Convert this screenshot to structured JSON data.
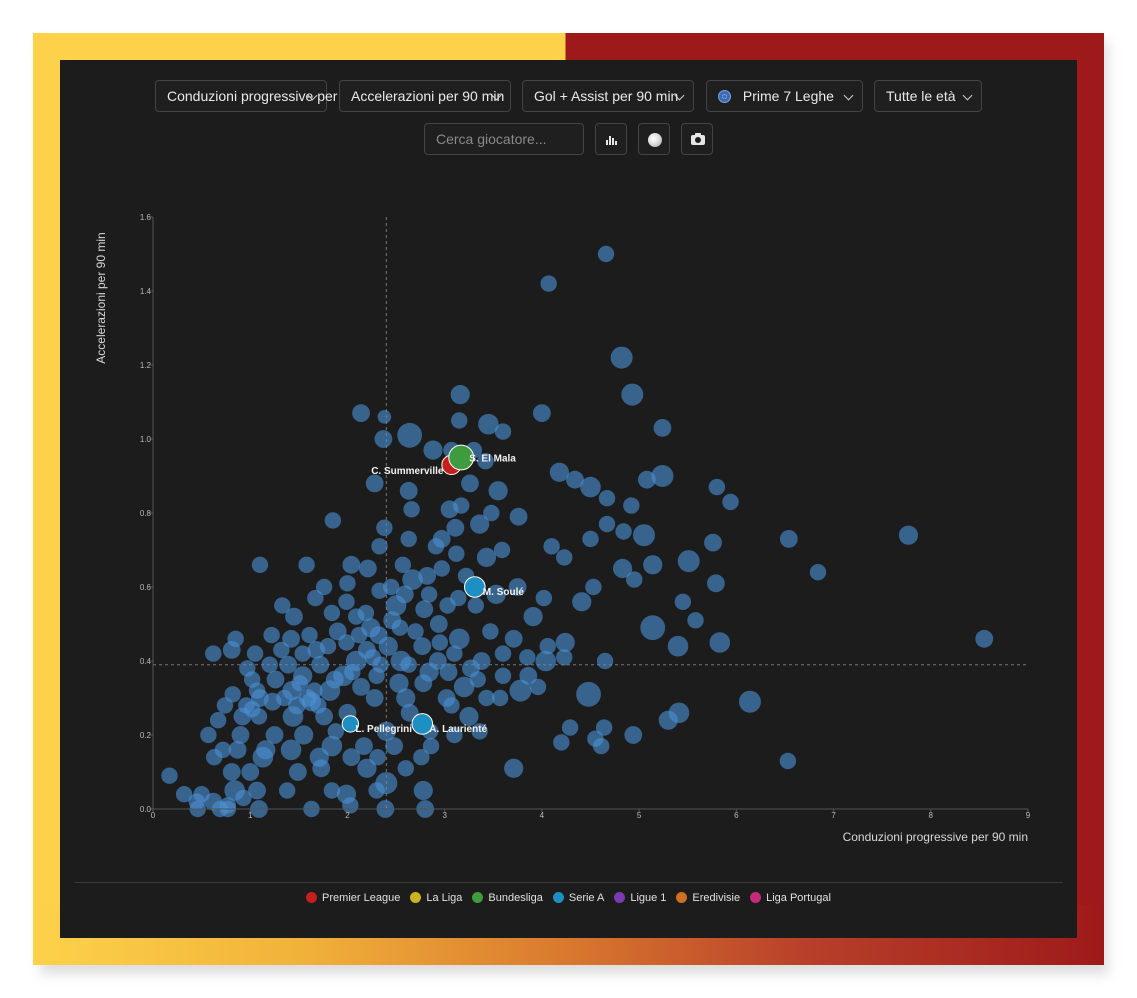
{
  "controls": {
    "x_metric": "Conduzioni progressive per 90 min",
    "y_metric": "Accelerazioni per 90 min",
    "size_metric": "Gol + Assist per 90 min",
    "league_filter": "Prime 7 Leghe",
    "age_filter": "Tutte le età",
    "search_placeholder": "Cerca giocatore..."
  },
  "icons": {
    "bar_chart": "bar-chart-icon",
    "circle": "bubble-toggle-icon",
    "camera": "camera-icon",
    "globe": "globe-icon",
    "chevron": "chevron-down-icon"
  },
  "colors": {
    "frame_left": "#fdd24a",
    "frame_right": "#9e1a1a",
    "background": "#1c1c1c",
    "bubble": "#4a8fd4"
  },
  "legend": [
    {
      "label": "Premier League",
      "color": "#c41e1e"
    },
    {
      "label": "La Liga",
      "color": "#c9b31e"
    },
    {
      "label": "Bundesliga",
      "color": "#3e9b3e"
    },
    {
      "label": "Serie A",
      "color": "#1d8fc2"
    },
    {
      "label": "Ligue 1",
      "color": "#7b3bb0"
    },
    {
      "label": "Eredivisie",
      "color": "#d0701e"
    },
    {
      "label": "Liga Portugal",
      "color": "#c62a7a"
    }
  ],
  "chart_data": {
    "type": "scatter",
    "xlabel": "Conduzioni progressive per 90 min",
    "ylabel": "Accelerazioni per 90 min",
    "xlim": [
      0,
      9
    ],
    "ylim": [
      0,
      1.6
    ],
    "xticks": [
      "0",
      "1",
      "2",
      "3",
      "4",
      "5",
      "6",
      "7",
      "8",
      "9"
    ],
    "yticks": [
      "0.0",
      "0.2",
      "0.4",
      "0.6",
      "0.8",
      "1.0",
      "1.2",
      "1.4",
      "1.6"
    ],
    "reference_lines": {
      "x": 2.4,
      "y": 0.39
    },
    "highlighted": [
      {
        "name": "C. Summerville",
        "x": 3.07,
        "y": 0.93,
        "size": 0.4,
        "league": "Premier League"
      },
      {
        "name": "S. El Mala",
        "x": 3.17,
        "y": 0.95,
        "size": 0.6,
        "league": "Bundesliga"
      },
      {
        "name": "M. Soulé",
        "x": 3.31,
        "y": 0.6,
        "size": 0.45,
        "league": "Serie A"
      },
      {
        "name": "L. Pellegrini",
        "x": 2.03,
        "y": 0.23,
        "size": 0.3,
        "league": "Serie A"
      },
      {
        "name": "A. Laurienté",
        "x": 2.77,
        "y": 0.23,
        "size": 0.45,
        "league": "Serie A"
      }
    ],
    "points": [
      [
        4.66,
        1.5,
        0.3
      ],
      [
        4.07,
        1.42,
        0.3
      ],
      [
        4.82,
        1.22,
        0.5
      ],
      [
        4.93,
        1.12,
        0.5
      ],
      [
        3.16,
        1.12,
        0.4
      ],
      [
        2.14,
        1.07,
        0.35
      ],
      [
        2.38,
        1.06,
        0.2
      ],
      [
        4.0,
        1.07,
        0.35
      ],
      [
        3.15,
        1.05,
        0.3
      ],
      [
        3.45,
        1.04,
        0.45
      ],
      [
        3.6,
        1.02,
        0.3
      ],
      [
        5.24,
        1.03,
        0.35
      ],
      [
        2.64,
        1.01,
        0.6
      ],
      [
        2.37,
        1.0,
        0.35
      ],
      [
        2.88,
        0.97,
        0.4
      ],
      [
        3.3,
        0.97,
        0.3
      ],
      [
        3.07,
        0.97,
        0.3
      ],
      [
        3.42,
        0.94,
        0.3
      ],
      [
        4.18,
        0.91,
        0.4
      ],
      [
        5.08,
        0.89,
        0.35
      ],
      [
        5.24,
        0.9,
        0.5
      ],
      [
        4.34,
        0.89,
        0.35
      ],
      [
        4.5,
        0.87,
        0.45
      ],
      [
        5.8,
        0.87,
        0.3
      ],
      [
        3.26,
        0.88,
        0.35
      ],
      [
        2.28,
        0.88,
        0.35
      ],
      [
        2.63,
        0.86,
        0.35
      ],
      [
        3.55,
        0.86,
        0.4
      ],
      [
        4.67,
        0.84,
        0.3
      ],
      [
        5.94,
        0.83,
        0.3
      ],
      [
        4.92,
        0.82,
        0.3
      ],
      [
        2.66,
        0.81,
        0.3
      ],
      [
        3.05,
        0.81,
        0.35
      ],
      [
        3.17,
        0.82,
        0.3
      ],
      [
        3.48,
        0.8,
        0.3
      ],
      [
        1.85,
        0.78,
        0.3
      ],
      [
        3.76,
        0.79,
        0.35
      ],
      [
        3.36,
        0.77,
        0.4
      ],
      [
        4.67,
        0.77,
        0.3
      ],
      [
        2.38,
        0.76,
        0.3
      ],
      [
        3.11,
        0.76,
        0.35
      ],
      [
        5.05,
        0.74,
        0.5
      ],
      [
        6.54,
        0.73,
        0.35
      ],
      [
        7.77,
        0.74,
        0.4
      ],
      [
        4.84,
        0.75,
        0.3
      ],
      [
        4.5,
        0.73,
        0.3
      ],
      [
        2.63,
        0.73,
        0.3
      ],
      [
        2.97,
        0.73,
        0.35
      ],
      [
        5.76,
        0.72,
        0.35
      ],
      [
        4.1,
        0.71,
        0.3
      ],
      [
        2.91,
        0.71,
        0.3
      ],
      [
        2.33,
        0.71,
        0.3
      ],
      [
        3.59,
        0.7,
        0.3
      ],
      [
        5.14,
        0.66,
        0.4
      ],
      [
        5.51,
        0.67,
        0.5
      ],
      [
        4.83,
        0.65,
        0.4
      ],
      [
        3.43,
        0.68,
        0.4
      ],
      [
        3.12,
        0.69,
        0.3
      ],
      [
        4.23,
        0.68,
        0.3
      ],
      [
        2.04,
        0.66,
        0.35
      ],
      [
        1.1,
        0.66,
        0.3
      ],
      [
        1.58,
        0.66,
        0.3
      ],
      [
        2.21,
        0.65,
        0.35
      ],
      [
        2.57,
        0.66,
        0.3
      ],
      [
        2.97,
        0.65,
        0.3
      ],
      [
        6.84,
        0.64,
        0.3
      ],
      [
        4.95,
        0.62,
        0.3
      ],
      [
        5.79,
        0.61,
        0.35
      ],
      [
        2.67,
        0.62,
        0.45
      ],
      [
        3.75,
        0.6,
        0.35
      ],
      [
        4.53,
        0.6,
        0.3
      ],
      [
        3.53,
        0.58,
        0.4
      ],
      [
        4.02,
        0.57,
        0.3
      ],
      [
        4.41,
        0.56,
        0.4
      ],
      [
        5.45,
        0.56,
        0.3
      ],
      [
        2.5,
        0.55,
        0.45
      ],
      [
        2.79,
        0.54,
        0.35
      ],
      [
        3.03,
        0.55,
        0.3
      ],
      [
        3.32,
        0.55,
        0.3
      ],
      [
        1.67,
        0.57,
        0.3
      ],
      [
        1.33,
        0.55,
        0.3
      ],
      [
        1.84,
        0.53,
        0.3
      ],
      [
        2.09,
        0.52,
        0.3
      ],
      [
        3.91,
        0.52,
        0.4
      ],
      [
        5.58,
        0.51,
        0.3
      ],
      [
        2.94,
        0.5,
        0.35
      ],
      [
        5.14,
        0.49,
        0.6
      ],
      [
        2.54,
        0.49,
        0.3
      ],
      [
        2.24,
        0.49,
        0.4
      ],
      [
        1.9,
        0.48,
        0.35
      ],
      [
        1.61,
        0.47,
        0.3
      ],
      [
        3.47,
        0.48,
        0.3
      ],
      [
        3.71,
        0.46,
        0.35
      ],
      [
        3.15,
        0.46,
        0.45
      ],
      [
        4.24,
        0.45,
        0.4
      ],
      [
        5.83,
        0.45,
        0.45
      ],
      [
        8.55,
        0.46,
        0.35
      ],
      [
        5.4,
        0.44,
        0.45
      ],
      [
        4.06,
        0.44,
        0.3
      ],
      [
        2.77,
        0.44,
        0.35
      ],
      [
        2.42,
        0.44,
        0.4
      ],
      [
        2.2,
        0.43,
        0.35
      ],
      [
        1.8,
        0.44,
        0.3
      ],
      [
        0.81,
        0.43,
        0.35
      ],
      [
        0.62,
        0.42,
        0.3
      ],
      [
        0.85,
        0.46,
        0.3
      ],
      [
        3.6,
        0.42,
        0.3
      ],
      [
        3.85,
        0.41,
        0.3
      ],
      [
        4.04,
        0.4,
        0.45
      ],
      [
        4.23,
        0.41,
        0.3
      ],
      [
        4.65,
        0.4,
        0.3
      ],
      [
        2.55,
        0.4,
        0.45
      ],
      [
        2.09,
        0.4,
        0.45
      ],
      [
        1.72,
        0.39,
        0.35
      ],
      [
        1.39,
        0.39,
        0.35
      ],
      [
        1.2,
        0.39,
        0.3
      ],
      [
        3.27,
        0.38,
        0.35
      ],
      [
        3.04,
        0.37,
        0.35
      ],
      [
        2.84,
        0.37,
        0.4
      ],
      [
        2.3,
        0.36,
        0.3
      ],
      [
        1.96,
        0.36,
        0.45
      ],
      [
        1.54,
        0.36,
        0.4
      ],
      [
        1.26,
        0.35,
        0.35
      ],
      [
        1.02,
        0.35,
        0.3
      ],
      [
        3.34,
        0.35,
        0.3
      ],
      [
        2.53,
        0.34,
        0.4
      ],
      [
        2.78,
        0.34,
        0.35
      ],
      [
        3.2,
        0.33,
        0.45
      ],
      [
        3.78,
        0.32,
        0.5
      ],
      [
        3.96,
        0.33,
        0.3
      ],
      [
        2.14,
        0.33,
        0.35
      ],
      [
        1.82,
        0.32,
        0.45
      ],
      [
        1.43,
        0.32,
        0.4
      ],
      [
        1.07,
        0.32,
        0.3
      ],
      [
        0.82,
        0.31,
        0.3
      ],
      [
        4.48,
        0.31,
        0.6
      ],
      [
        3.57,
        0.3,
        0.3
      ],
      [
        3.02,
        0.3,
        0.35
      ],
      [
        2.6,
        0.3,
        0.4
      ],
      [
        2.28,
        0.3,
        0.35
      ],
      [
        1.63,
        0.29,
        0.4
      ],
      [
        1.23,
        0.29,
        0.35
      ],
      [
        0.96,
        0.28,
        0.3
      ],
      [
        0.74,
        0.28,
        0.3
      ],
      [
        6.14,
        0.29,
        0.5
      ],
      [
        3.43,
        0.3,
        0.3
      ],
      [
        3.07,
        0.28,
        0.3
      ],
      [
        5.41,
        0.26,
        0.45
      ],
      [
        5.3,
        0.24,
        0.4
      ],
      [
        3.25,
        0.25,
        0.4
      ],
      [
        2.64,
        0.26,
        0.35
      ],
      [
        2.0,
        0.26,
        0.35
      ],
      [
        1.76,
        0.25,
        0.35
      ],
      [
        1.44,
        0.25,
        0.45
      ],
      [
        1.09,
        0.25,
        0.3
      ],
      [
        0.92,
        0.25,
        0.35
      ],
      [
        0.67,
        0.24,
        0.3
      ],
      [
        4.29,
        0.22,
        0.3
      ],
      [
        4.64,
        0.22,
        0.3
      ],
      [
        4.94,
        0.2,
        0.35
      ],
      [
        3.36,
        0.21,
        0.3
      ],
      [
        3.1,
        0.2,
        0.3
      ],
      [
        2.85,
        0.21,
        0.3
      ],
      [
        2.4,
        0.21,
        0.4
      ],
      [
        1.88,
        0.21,
        0.3
      ],
      [
        1.55,
        0.2,
        0.4
      ],
      [
        1.25,
        0.2,
        0.35
      ],
      [
        0.9,
        0.2,
        0.35
      ],
      [
        0.57,
        0.2,
        0.3
      ],
      [
        4.55,
        0.19,
        0.3
      ],
      [
        4.61,
        0.17,
        0.3
      ],
      [
        4.2,
        0.18,
        0.3
      ],
      [
        2.86,
        0.17,
        0.3
      ],
      [
        2.48,
        0.17,
        0.35
      ],
      [
        2.17,
        0.17,
        0.35
      ],
      [
        1.84,
        0.17,
        0.45
      ],
      [
        1.42,
        0.16,
        0.45
      ],
      [
        1.16,
        0.16,
        0.4
      ],
      [
        0.87,
        0.16,
        0.35
      ],
      [
        0.72,
        0.16,
        0.3
      ],
      [
        2.76,
        0.14,
        0.3
      ],
      [
        2.31,
        0.14,
        0.3
      ],
      [
        2.04,
        0.14,
        0.35
      ],
      [
        1.71,
        0.14,
        0.4
      ],
      [
        1.13,
        0.14,
        0.45
      ],
      [
        0.63,
        0.14,
        0.3
      ],
      [
        6.53,
        0.13,
        0.3
      ],
      [
        3.71,
        0.11,
        0.4
      ],
      [
        2.6,
        0.11,
        0.3
      ],
      [
        2.2,
        0.11,
        0.4
      ],
      [
        1.73,
        0.11,
        0.35
      ],
      [
        1.49,
        0.1,
        0.35
      ],
      [
        1.0,
        0.1,
        0.35
      ],
      [
        0.81,
        0.1,
        0.35
      ],
      [
        0.17,
        0.09,
        0.3
      ],
      [
        2.4,
        0.07,
        0.5
      ],
      [
        2.78,
        0.05,
        0.4
      ],
      [
        2.3,
        0.05,
        0.3
      ],
      [
        1.84,
        0.05,
        0.3
      ],
      [
        1.38,
        0.05,
        0.3
      ],
      [
        1.07,
        0.05,
        0.35
      ],
      [
        0.84,
        0.05,
        0.45
      ],
      [
        0.5,
        0.04,
        0.3
      ],
      [
        0.32,
        0.04,
        0.3
      ],
      [
        1.99,
        0.04,
        0.4
      ],
      [
        0.93,
        0.03,
        0.3
      ],
      [
        0.62,
        0.02,
        0.35
      ],
      [
        2.03,
        0.01,
        0.3
      ],
      [
        2.39,
        0.0,
        0.35
      ],
      [
        2.8,
        0.0,
        0.35
      ],
      [
        1.63,
        0.0,
        0.3
      ],
      [
        1.09,
        0.0,
        0.35
      ],
      [
        0.69,
        0.0,
        0.3
      ],
      [
        0.46,
        0.0,
        0.3
      ],
      [
        0.77,
        0.0,
        0.3
      ],
      [
        0.45,
        0.02,
        0.3
      ],
      [
        0.77,
        0.01,
        0.3
      ],
      [
        1.48,
        0.28,
        0.35
      ],
      [
        1.35,
        0.3,
        0.3
      ],
      [
        1.1,
        0.3,
        0.35
      ],
      [
        1.02,
        0.27,
        0.3
      ],
      [
        1.7,
        0.28,
        0.3
      ],
      [
        1.59,
        0.3,
        0.35
      ],
      [
        1.66,
        0.32,
        0.3
      ],
      [
        1.51,
        0.34,
        0.3
      ],
      [
        1.87,
        0.35,
        0.35
      ],
      [
        2.05,
        0.37,
        0.3
      ],
      [
        2.34,
        0.39,
        0.3
      ],
      [
        2.63,
        0.39,
        0.3
      ],
      [
        2.93,
        0.4,
        0.35
      ],
      [
        2.7,
        0.48,
        0.3
      ],
      [
        2.46,
        0.51,
        0.35
      ],
      [
        2.19,
        0.53,
        0.3
      ],
      [
        1.99,
        0.56,
        0.3
      ],
      [
        2.33,
        0.59,
        0.3
      ],
      [
        2.59,
        0.58,
        0.35
      ],
      [
        2.84,
        0.58,
        0.3
      ],
      [
        3.14,
        0.57,
        0.3
      ],
      [
        3.22,
        0.63,
        0.3
      ],
      [
        2.82,
        0.63,
        0.35
      ],
      [
        2.45,
        0.6,
        0.3
      ],
      [
        2.0,
        0.61,
        0.3
      ],
      [
        1.76,
        0.6,
        0.3
      ],
      [
        1.45,
        0.52,
        0.35
      ],
      [
        1.22,
        0.47,
        0.3
      ],
      [
        1.05,
        0.42,
        0.3
      ],
      [
        0.97,
        0.38,
        0.3
      ],
      [
        1.32,
        0.43,
        0.3
      ],
      [
        1.68,
        0.43,
        0.35
      ],
      [
        2.95,
        0.45,
        0.3
      ],
      [
        3.1,
        0.42,
        0.3
      ],
      [
        3.38,
        0.4,
        0.35
      ],
      [
        3.6,
        0.36,
        0.3
      ],
      [
        3.86,
        0.36,
        0.35
      ],
      [
        1.99,
        0.45,
        0.3
      ],
      [
        2.12,
        0.47,
        0.3
      ],
      [
        2.32,
        0.47,
        0.35
      ],
      [
        2.26,
        0.41,
        0.3
      ],
      [
        1.54,
        0.42,
        0.3
      ],
      [
        1.42,
        0.46,
        0.35
      ]
    ]
  }
}
